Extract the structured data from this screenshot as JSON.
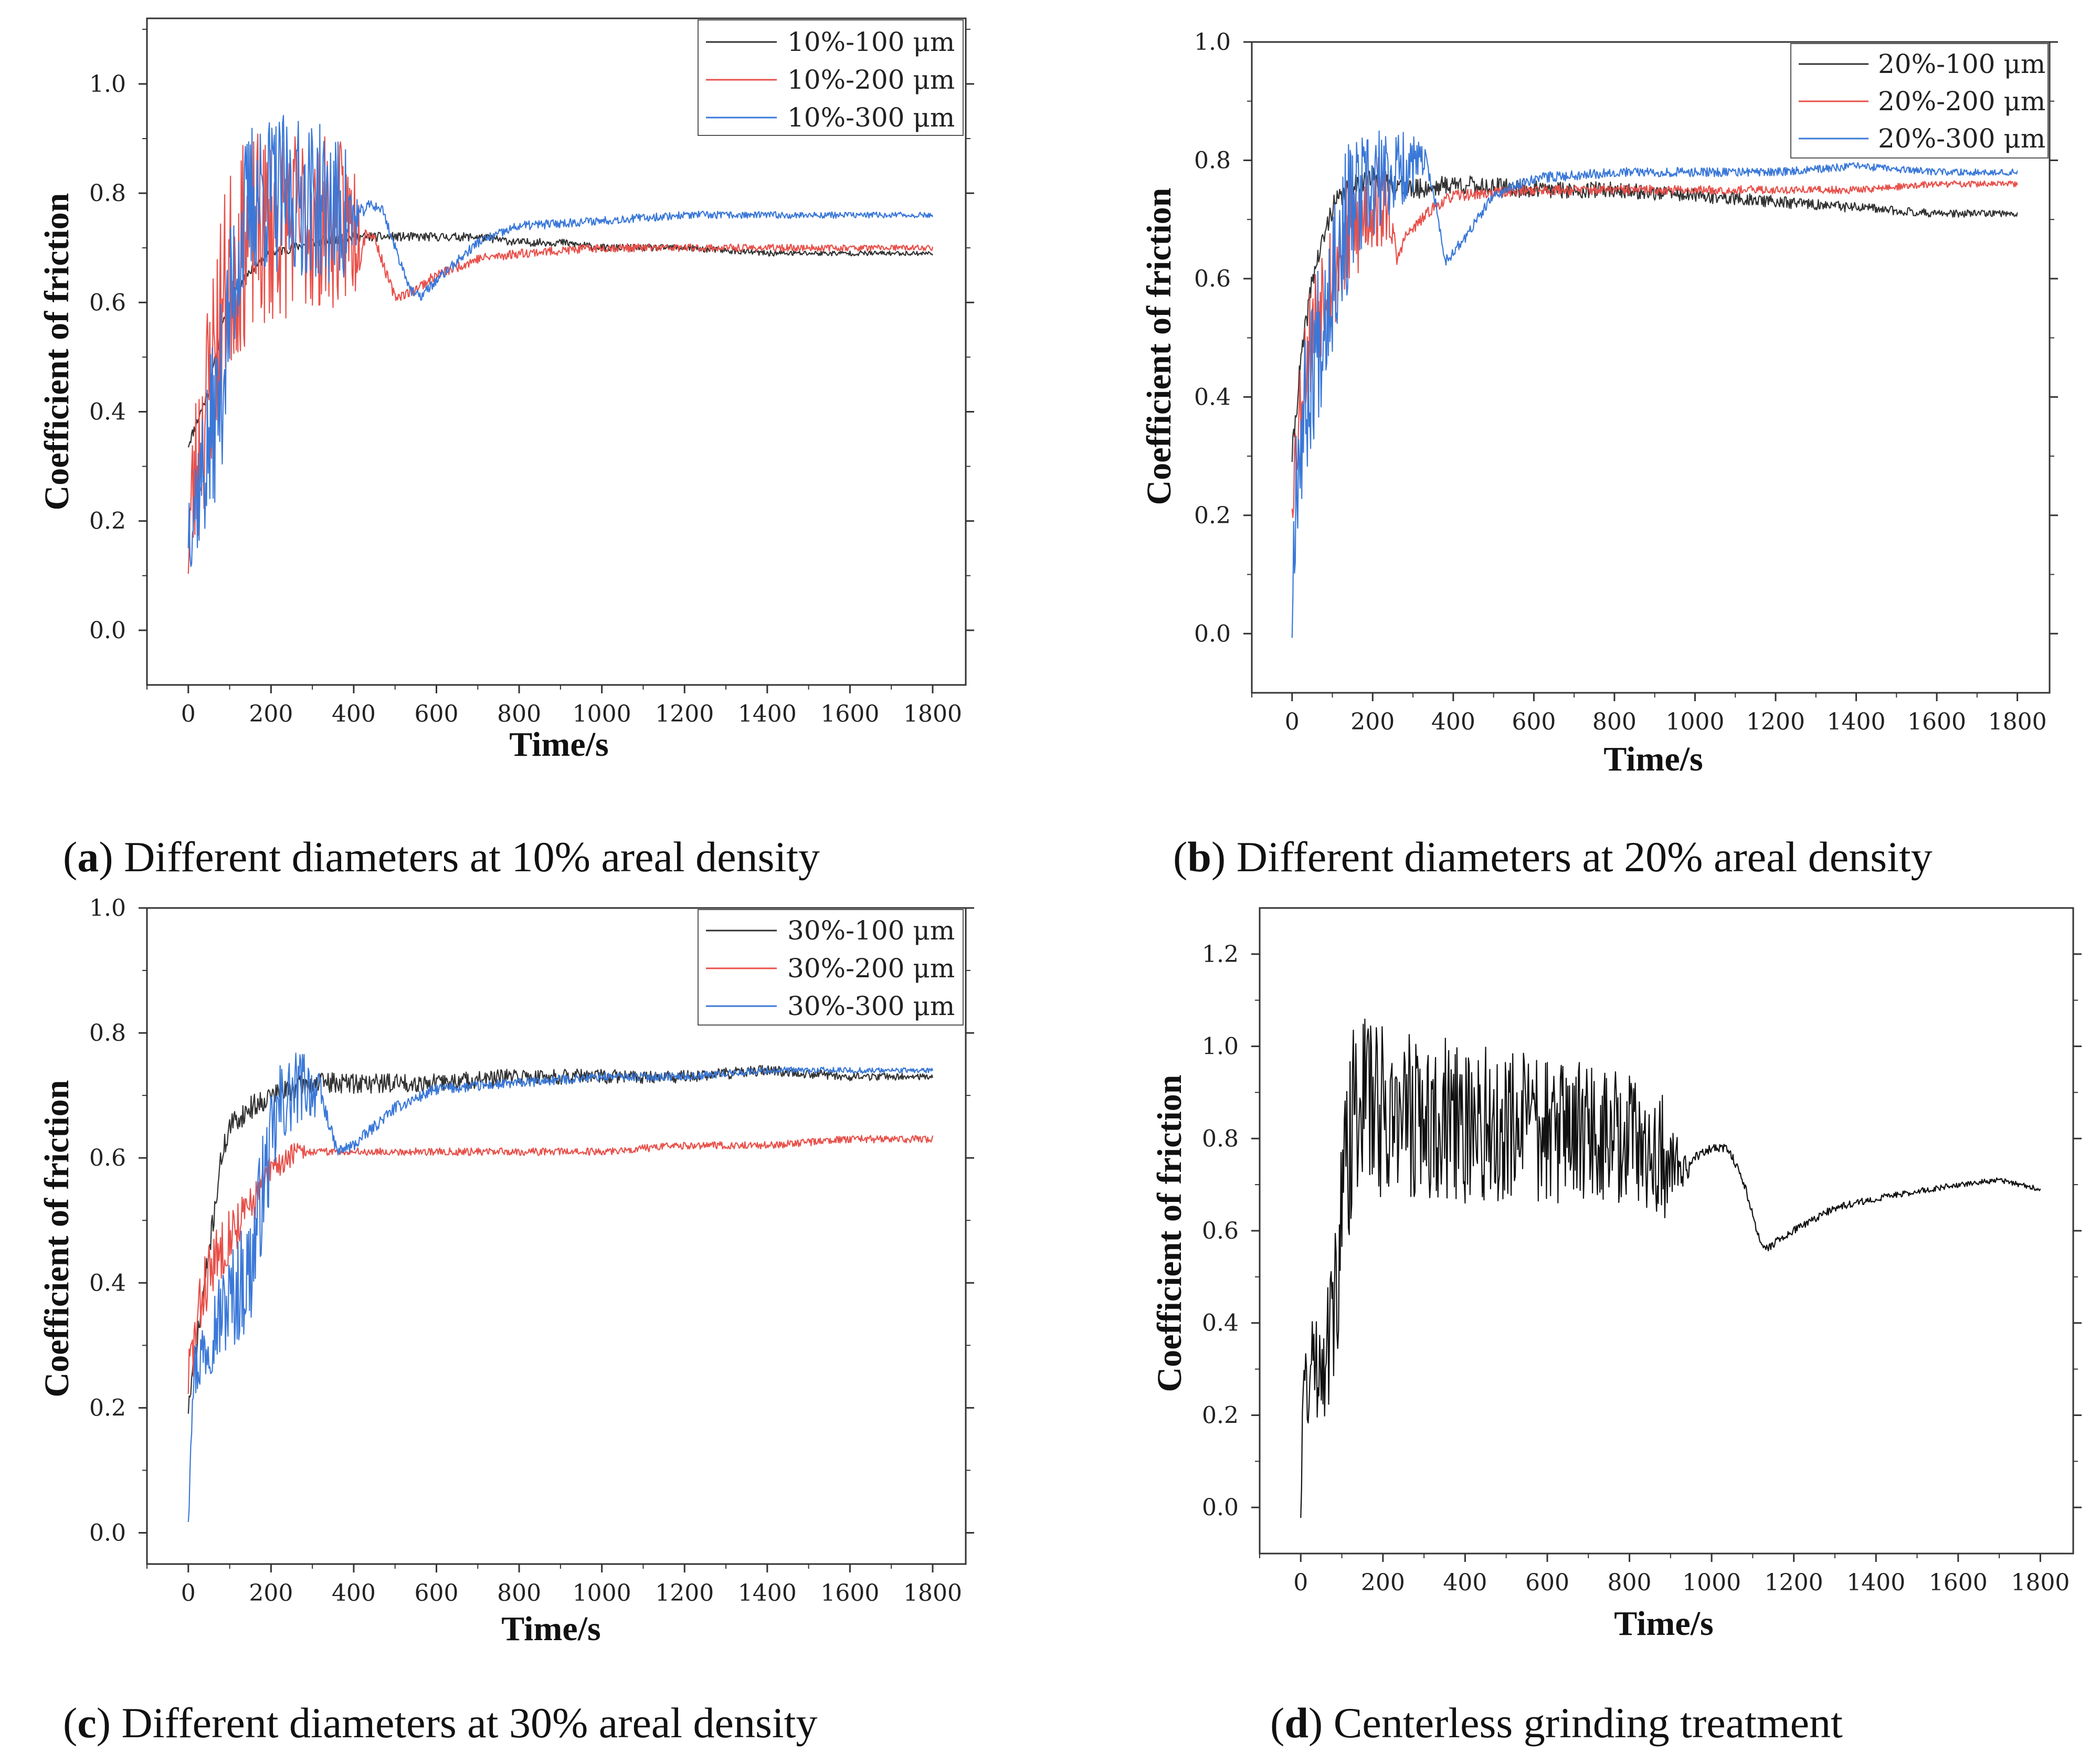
{
  "chart_data": [
    {
      "id": "a",
      "type": "line",
      "caption_letter": "a",
      "caption_text": "Different diameters at 10% areal density",
      "xlabel": "Time/s",
      "ylabel": "Coefficient of friction",
      "xlim": [
        -100,
        1880
      ],
      "ylim": [
        -0.1,
        1.12
      ],
      "xticks": [
        "0",
        "200",
        "400",
        "600",
        "800",
        "1000",
        "1200",
        "1400",
        "1600",
        "1800"
      ],
      "yticks": [
        "0.0",
        "0.2",
        "0.4",
        "0.6",
        "0.8",
        "1.0"
      ],
      "legend": "top-right",
      "series": [
        {
          "name": "10%-100 μm",
          "color": "#333333",
          "seed": 11,
          "points": [
            [
              0,
              0.34
            ],
            [
              20,
              0.38
            ],
            [
              50,
              0.44
            ],
            [
              80,
              0.55
            ],
            [
              110,
              0.62
            ],
            [
              150,
              0.66
            ],
            [
              200,
              0.69
            ],
            [
              300,
              0.71
            ],
            [
              400,
              0.72
            ],
            [
              500,
              0.72
            ],
            [
              600,
              0.72
            ],
            [
              700,
              0.72
            ],
            [
              800,
              0.71
            ],
            [
              900,
              0.71
            ],
            [
              1000,
              0.7
            ],
            [
              1200,
              0.7
            ],
            [
              1400,
              0.69
            ],
            [
              1600,
              0.69
            ],
            [
              1800,
              0.69
            ]
          ],
          "noise": [
            [
              0,
              0.01
            ],
            [
              1800,
              0.004
            ]
          ]
        },
        {
          "name": "10%-200 μm",
          "color": "#e8504a",
          "seed": 23,
          "points": [
            [
              0,
              0.18
            ],
            [
              30,
              0.35
            ],
            [
              60,
              0.5
            ],
            [
              100,
              0.66
            ],
            [
              150,
              0.72
            ],
            [
              250,
              0.75
            ],
            [
              400,
              0.74
            ],
            [
              450,
              0.72
            ],
            [
              480,
              0.65
            ],
            [
              500,
              0.61
            ],
            [
              540,
              0.62
            ],
            [
              600,
              0.65
            ],
            [
              700,
              0.68
            ],
            [
              800,
              0.69
            ],
            [
              1000,
              0.7
            ],
            [
              1200,
              0.7
            ],
            [
              1400,
              0.7
            ],
            [
              1600,
              0.7
            ],
            [
              1800,
              0.7
            ]
          ],
          "noise": [
            [
              0,
              0.15
            ],
            [
              60,
              0.2
            ],
            [
              400,
              0.15
            ],
            [
              430,
              0.01
            ],
            [
              1800,
              0.005
            ]
          ]
        },
        {
          "name": "10%-300 μm",
          "color": "#3a78d8",
          "seed": 37,
          "points": [
            [
              0,
              0.2
            ],
            [
              40,
              0.3
            ],
            [
              80,
              0.45
            ],
            [
              120,
              0.7
            ],
            [
              160,
              0.8
            ],
            [
              300,
              0.79
            ],
            [
              400,
              0.75
            ],
            [
              440,
              0.78
            ],
            [
              470,
              0.77
            ],
            [
              500,
              0.7
            ],
            [
              540,
              0.62
            ],
            [
              560,
              0.61
            ],
            [
              600,
              0.64
            ],
            [
              700,
              0.71
            ],
            [
              800,
              0.74
            ],
            [
              1000,
              0.75
            ],
            [
              1200,
              0.76
            ],
            [
              1400,
              0.76
            ],
            [
              1600,
              0.76
            ],
            [
              1800,
              0.76
            ]
          ],
          "noise": [
            [
              0,
              0.1
            ],
            [
              60,
              0.16
            ],
            [
              380,
              0.14
            ],
            [
              420,
              0.01
            ],
            [
              1800,
              0.005
            ]
          ]
        }
      ]
    },
    {
      "id": "b",
      "type": "line",
      "caption_letter": "b",
      "caption_text": "Different diameters at 20% areal density",
      "xlabel": "Time/s",
      "ylabel": "Coefficient of friction",
      "xlim": [
        -100,
        1880
      ],
      "ylim": [
        -0.1,
        1.0
      ],
      "xticks": [
        "0",
        "200",
        "400",
        "600",
        "800",
        "1000",
        "1200",
        "1400",
        "1600",
        "1800"
      ],
      "yticks": [
        "0.0",
        "0.2",
        "0.4",
        "0.6",
        "0.8",
        "1.0"
      ],
      "legend": "top-right",
      "series": [
        {
          "name": "20%-100 μm",
          "color": "#333333",
          "seed": 41,
          "points": [
            [
              0,
              0.3
            ],
            [
              20,
              0.45
            ],
            [
              50,
              0.6
            ],
            [
              100,
              0.72
            ],
            [
              150,
              0.76
            ],
            [
              200,
              0.77
            ],
            [
              300,
              0.75
            ],
            [
              400,
              0.76
            ],
            [
              600,
              0.75
            ],
            [
              800,
              0.75
            ],
            [
              1000,
              0.74
            ],
            [
              1200,
              0.73
            ],
            [
              1400,
              0.72
            ],
            [
              1600,
              0.71
            ],
            [
              1800,
              0.71
            ]
          ],
          "noise": [
            [
              0,
              0.02
            ],
            [
              1800,
              0.005
            ]
          ]
        },
        {
          "name": "20%-200 μm",
          "color": "#e8504a",
          "seed": 53,
          "points": [
            [
              0,
              0.25
            ],
            [
              30,
              0.45
            ],
            [
              80,
              0.6
            ],
            [
              150,
              0.68
            ],
            [
              200,
              0.73
            ],
            [
              240,
              0.72
            ],
            [
              260,
              0.63
            ],
            [
              280,
              0.67
            ],
            [
              350,
              0.72
            ],
            [
              400,
              0.74
            ],
            [
              600,
              0.75
            ],
            [
              800,
              0.75
            ],
            [
              1000,
              0.75
            ],
            [
              1200,
              0.75
            ],
            [
              1400,
              0.75
            ],
            [
              1600,
              0.76
            ],
            [
              1800,
              0.76
            ]
          ],
          "noise": [
            [
              0,
              0.08
            ],
            [
              100,
              0.12
            ],
            [
              230,
              0.08
            ],
            [
              260,
              0.01
            ],
            [
              1800,
              0.005
            ]
          ]
        },
        {
          "name": "20%-300 μm",
          "color": "#3a78d8",
          "seed": 67,
          "points": [
            [
              0,
              0.05
            ],
            [
              10,
              0.28
            ],
            [
              50,
              0.45
            ],
            [
              100,
              0.62
            ],
            [
              150,
              0.72
            ],
            [
              250,
              0.78
            ],
            [
              330,
              0.8
            ],
            [
              350,
              0.75
            ],
            [
              380,
              0.63
            ],
            [
              420,
              0.66
            ],
            [
              500,
              0.74
            ],
            [
              600,
              0.77
            ],
            [
              800,
              0.78
            ],
            [
              1000,
              0.78
            ],
            [
              1200,
              0.78
            ],
            [
              1400,
              0.79
            ],
            [
              1600,
              0.78
            ],
            [
              1800,
              0.78
            ]
          ],
          "noise": [
            [
              0,
              0.12
            ],
            [
              100,
              0.15
            ],
            [
              300,
              0.05
            ],
            [
              340,
              0.01
            ],
            [
              1800,
              0.005
            ]
          ]
        }
      ]
    },
    {
      "id": "c",
      "type": "line",
      "caption_letter": "c",
      "caption_text": "Different diameters at 30% areal density",
      "xlabel": "Time/s",
      "ylabel": "Coefficient of friction",
      "xlim": [
        -100,
        1880
      ],
      "ylim": [
        -0.05,
        1.0
      ],
      "xticks": [
        "0",
        "200",
        "400",
        "600",
        "800",
        "1000",
        "1200",
        "1400",
        "1600",
        "1800"
      ],
      "yticks": [
        "0.0",
        "0.2",
        "0.4",
        "0.6",
        "0.8",
        "1.0"
      ],
      "legend": "top-right",
      "series": [
        {
          "name": "30%-100 μm",
          "color": "#333333",
          "seed": 71,
          "points": [
            [
              0,
              0.2
            ],
            [
              30,
              0.35
            ],
            [
              60,
              0.5
            ],
            [
              80,
              0.6
            ],
            [
              100,
              0.65
            ],
            [
              150,
              0.68
            ],
            [
              200,
              0.7
            ],
            [
              300,
              0.72
            ],
            [
              400,
              0.72
            ],
            [
              600,
              0.72
            ],
            [
              800,
              0.73
            ],
            [
              1000,
              0.73
            ],
            [
              1200,
              0.73
            ],
            [
              1400,
              0.74
            ],
            [
              1600,
              0.73
            ],
            [
              1800,
              0.73
            ]
          ],
          "noise": [
            [
              0,
              0.02
            ],
            [
              1800,
              0.005
            ]
          ]
        },
        {
          "name": "30%-200 μm",
          "color": "#e8504a",
          "seed": 83,
          "points": [
            [
              0,
              0.25
            ],
            [
              40,
              0.4
            ],
            [
              100,
              0.48
            ],
            [
              150,
              0.52
            ],
            [
              200,
              0.58
            ],
            [
              260,
              0.61
            ],
            [
              400,
              0.61
            ],
            [
              600,
              0.61
            ],
            [
              800,
              0.61
            ],
            [
              1000,
              0.61
            ],
            [
              1200,
              0.62
            ],
            [
              1400,
              0.62
            ],
            [
              1600,
              0.63
            ],
            [
              1800,
              0.63
            ]
          ],
          "noise": [
            [
              0,
              0.06
            ],
            [
              200,
              0.03
            ],
            [
              300,
              0.006
            ],
            [
              1800,
              0.006
            ]
          ]
        },
        {
          "name": "30%-300 μm",
          "color": "#3a78d8",
          "seed": 97,
          "points": [
            [
              0,
              0.04
            ],
            [
              10,
              0.25
            ],
            [
              60,
              0.33
            ],
            [
              100,
              0.37
            ],
            [
              150,
              0.42
            ],
            [
              180,
              0.55
            ],
            [
              220,
              0.68
            ],
            [
              280,
              0.72
            ],
            [
              320,
              0.7
            ],
            [
              360,
              0.61
            ],
            [
              400,
              0.62
            ],
            [
              500,
              0.68
            ],
            [
              600,
              0.71
            ],
            [
              800,
              0.72
            ],
            [
              1000,
              0.73
            ],
            [
              1200,
              0.73
            ],
            [
              1400,
              0.74
            ],
            [
              1600,
              0.74
            ],
            [
              1800,
              0.74
            ]
          ],
          "noise": [
            [
              0,
              0.05
            ],
            [
              150,
              0.1
            ],
            [
              300,
              0.05
            ],
            [
              340,
              0.01
            ],
            [
              1800,
              0.004
            ]
          ]
        }
      ]
    },
    {
      "id": "d",
      "type": "line",
      "caption_letter": "d",
      "caption_text": "Centerless grinding treatment",
      "xlabel": "Time/s",
      "ylabel": "Coefficient of friction",
      "xlim": [
        -100,
        1880
      ],
      "ylim": [
        -0.1,
        1.3
      ],
      "xticks": [
        "0",
        "200",
        "400",
        "600",
        "800",
        "1000",
        "1200",
        "1400",
        "1600",
        "1800"
      ],
      "yticks": [
        "0.0",
        "0.2",
        "0.4",
        "0.6",
        "0.8",
        "1.0",
        "1.2"
      ],
      "legend": "none",
      "series": [
        {
          "name": "Centerless grinding",
          "color": "#111111",
          "seed": 131,
          "points": [
            [
              0,
              0.02
            ],
            [
              5,
              0.25
            ],
            [
              30,
              0.3
            ],
            [
              80,
              0.4
            ],
            [
              110,
              0.75
            ],
            [
              140,
              0.9
            ],
            [
              200,
              0.86
            ],
            [
              400,
              0.83
            ],
            [
              600,
              0.82
            ],
            [
              800,
              0.8
            ],
            [
              900,
              0.75
            ],
            [
              940,
              0.73
            ],
            [
              960,
              0.76
            ],
            [
              1000,
              0.78
            ],
            [
              1040,
              0.78
            ],
            [
              1080,
              0.7
            ],
            [
              1110,
              0.6
            ],
            [
              1130,
              0.56
            ],
            [
              1200,
              0.6
            ],
            [
              1300,
              0.65
            ],
            [
              1400,
              0.67
            ],
            [
              1600,
              0.7
            ],
            [
              1700,
              0.71
            ],
            [
              1800,
              0.69
            ]
          ],
          "noise": [
            [
              0,
              0.1
            ],
            [
              100,
              0.2
            ],
            [
              880,
              0.14
            ],
            [
              950,
              0.01
            ],
            [
              1800,
              0.005
            ]
          ]
        }
      ]
    }
  ]
}
